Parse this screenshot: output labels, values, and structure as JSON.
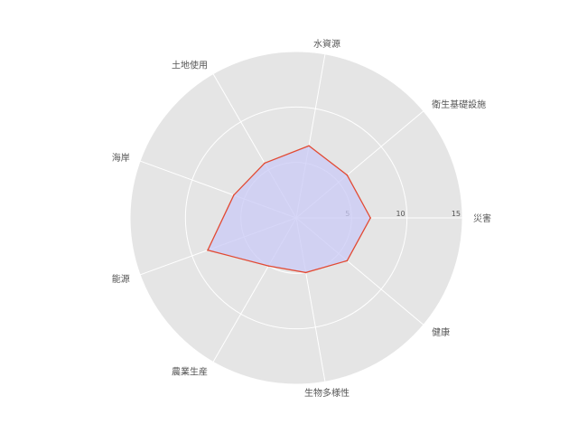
{
  "chart_data": {
    "type": "radar",
    "categories": [
      "災害",
      "衛生基礎設施",
      "水資源",
      "土地使用",
      "海岸",
      "能源",
      "農業生産",
      "生物多様性",
      "健康"
    ],
    "series": [
      {
        "values": [
          6.7,
          6.0,
          6.6,
          5.7,
          6.0,
          8.5,
          5.0,
          5.0,
          6.0
        ]
      }
    ],
    "rlim": [
      0,
      15
    ],
    "rticks": [
      5,
      10,
      15
    ],
    "rtick_labels": [
      "5",
      "10",
      "15"
    ],
    "grid": true,
    "colors": {
      "background": "#e5e5e5",
      "grid": "#ffffff",
      "line": "#e24a33",
      "fill": "#c9c9f5",
      "text": "#555555"
    }
  }
}
